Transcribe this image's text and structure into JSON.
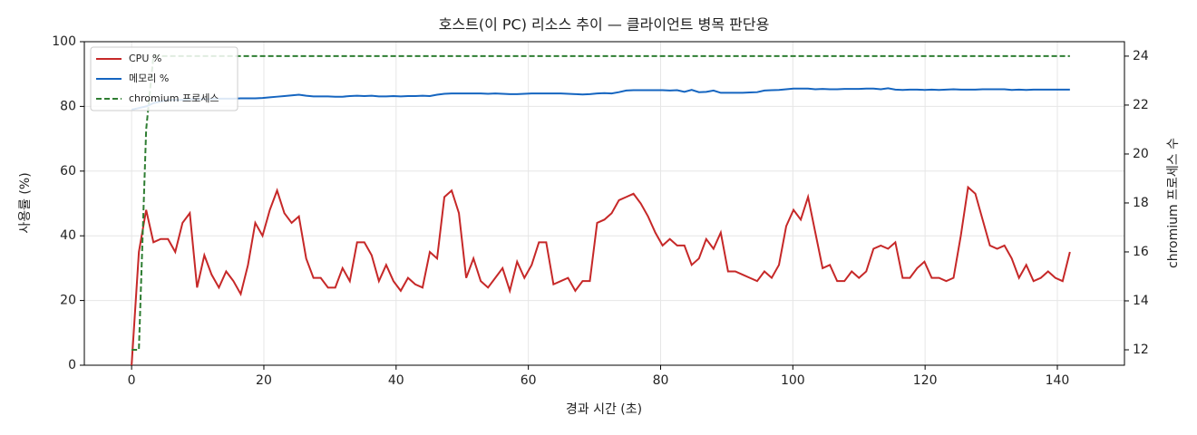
{
  "chart_data": {
    "type": "line",
    "title": "호스트(이 PC) 리소스 추이 — 클라이언트 병목 판단용",
    "x_label": "경과 시간 (초)",
    "y_label": "사용률 (%)",
    "y2_label": "chromium 프로세스 수",
    "x": [
      0,
      1.1,
      2.2,
      3.3,
      4.4,
      5.5,
      6.6,
      7.7,
      8.8,
      9.9,
      11,
      12.1,
      13.2,
      14.3,
      15.4,
      16.5,
      17.6,
      18.7,
      19.8,
      20.9,
      22,
      23.1,
      24.2,
      25.3,
      26.4,
      27.5,
      28.6,
      29.7,
      30.8,
      31.9,
      33,
      34.1,
      35.2,
      36.3,
      37.4,
      38.5,
      39.6,
      40.7,
      41.8,
      42.9,
      44,
      45.1,
      46.2,
      47.3,
      48.4,
      49.5,
      50.6,
      51.7,
      52.8,
      53.9,
      55,
      56.1,
      57.2,
      58.3,
      59.4,
      60.5,
      61.6,
      62.7,
      63.8,
      64.9,
      66,
      67.1,
      68.2,
      69.3,
      70.4,
      71.5,
      72.6,
      73.7,
      74.8,
      75.9,
      77,
      78.1,
      79.2,
      80.3,
      81.4,
      82.5,
      83.6,
      84.7,
      85.8,
      86.9,
      88,
      89.1,
      90.2,
      91.3,
      92.4,
      93.5,
      94.6,
      95.7,
      96.8,
      97.9,
      99,
      100.1,
      101.2,
      102.3,
      103.4,
      104.5,
      105.6,
      106.7,
      107.8,
      108.9,
      110,
      111.1,
      112.2,
      113.3,
      114.4,
      115.5,
      116.6,
      117.7,
      118.8,
      119.9,
      121,
      122.1,
      123.2,
      124.3,
      125.4,
      126.5,
      127.6,
      128.7,
      129.8,
      130.9,
      132,
      133.1,
      134.2,
      135.3,
      136.4,
      137.5,
      138.6,
      139.7,
      140.8,
      141.9
    ],
    "series": [
      {
        "name": "CPU %",
        "color": "#c62828",
        "linestyle": "solid",
        "values": [
          0,
          35,
          48,
          38,
          39,
          39,
          35,
          44,
          47,
          24,
          34,
          28,
          24,
          29,
          26,
          22,
          31,
          44,
          40,
          48,
          54,
          47,
          44,
          46,
          33,
          27,
          27,
          24,
          24,
          30,
          26,
          38,
          38,
          34,
          26,
          31,
          26,
          23,
          27,
          25,
          24,
          35,
          33,
          52,
          54,
          47,
          27,
          33,
          26,
          24,
          27,
          30,
          23,
          32,
          27,
          31,
          38,
          38,
          25,
          26,
          27,
          23,
          26,
          26,
          44,
          45,
          47,
          51,
          52,
          53,
          50,
          46,
          41,
          37,
          39,
          37,
          37,
          31,
          33,
          39,
          36,
          41,
          29,
          29,
          28,
          27,
          26,
          29,
          27,
          31,
          43,
          48,
          45,
          52,
          41,
          30,
          31,
          26,
          26,
          29,
          27,
          29,
          36,
          37,
          36,
          38,
          27,
          27,
          30,
          32,
          27,
          27,
          26,
          27,
          40,
          55,
          53,
          45,
          37,
          36,
          37,
          33,
          27,
          31,
          26,
          27,
          29,
          27,
          26,
          35
        ]
      },
      {
        "name": "메모리 %",
        "color": "#1565c0",
        "linestyle": "solid",
        "values": [
          79,
          79.5,
          80,
          81,
          81.5,
          82,
          82,
          82,
          82.2,
          82.3,
          82.3,
          82.3,
          82.4,
          82.4,
          82.4,
          82.5,
          82.5,
          82.5,
          82.6,
          82.8,
          83,
          83.2,
          83.4,
          83.6,
          83.3,
          83.1,
          83.1,
          83.1,
          83,
          83,
          83.2,
          83.3,
          83.2,
          83.3,
          83.1,
          83.1,
          83.2,
          83.1,
          83.2,
          83.2,
          83.3,
          83.2,
          83.6,
          83.9,
          84,
          84,
          84,
          84,
          84,
          83.9,
          84,
          83.9,
          83.8,
          83.8,
          83.9,
          84,
          84,
          84,
          84,
          84,
          83.9,
          83.8,
          83.7,
          83.8,
          84,
          84.1,
          84,
          84.4,
          84.9,
          85,
          85,
          85,
          85,
          85,
          84.9,
          85,
          84.5,
          85.1,
          84.4,
          84.5,
          84.9,
          84.2,
          84.2,
          84.2,
          84.2,
          84.3,
          84.4,
          84.9,
          85,
          85.1,
          85.3,
          85.5,
          85.5,
          85.5,
          85.3,
          85.4,
          85.3,
          85.3,
          85.4,
          85.4,
          85.4,
          85.5,
          85.5,
          85.3,
          85.6,
          85.2,
          85.1,
          85.2,
          85.2,
          85.1,
          85.2,
          85.1,
          85.2,
          85.3,
          85.2,
          85.2,
          85.2,
          85.3,
          85.3,
          85.3,
          85.3,
          85.1,
          85.2,
          85.1,
          85.2,
          85.2,
          85.2,
          85.2,
          85.2,
          85.2
        ]
      },
      {
        "name": "chromium 프로세스",
        "color": "#2e7d32",
        "linestyle": "dashed",
        "axis": "y2",
        "values": [
          12,
          12,
          21,
          24,
          24,
          24,
          24,
          24,
          24,
          24,
          24,
          24,
          24,
          24,
          24,
          24,
          24,
          24,
          24,
          24,
          24,
          24,
          24,
          24,
          24,
          24,
          24,
          24,
          24,
          24,
          24,
          24,
          24,
          24,
          24,
          24,
          24,
          24,
          24,
          24,
          24,
          24,
          24,
          24,
          24,
          24,
          24,
          24,
          24,
          24,
          24,
          24,
          24,
          24,
          24,
          24,
          24,
          24,
          24,
          24,
          24,
          24,
          24,
          24,
          24,
          24,
          24,
          24,
          24,
          24,
          24,
          24,
          24,
          24,
          24,
          24,
          24,
          24,
          24,
          24,
          24,
          24,
          24,
          24,
          24,
          24,
          24,
          24,
          24,
          24,
          24,
          24,
          24,
          24,
          24,
          24,
          24,
          24,
          24,
          24,
          24,
          24,
          24,
          24,
          24,
          24,
          24,
          24,
          24,
          24,
          24,
          24,
          24,
          24,
          24,
          24,
          24,
          24,
          24,
          24,
          24,
          24,
          24,
          24,
          24,
          24,
          24,
          24,
          24,
          24
        ]
      }
    ],
    "xlim": [
      -7.15,
      150.15
    ],
    "xticks": [
      0,
      20,
      40,
      60,
      80,
      100,
      120,
      140
    ],
    "ylim": [
      0,
      100
    ],
    "yticks": [
      0,
      20,
      40,
      60,
      80,
      100
    ],
    "y2lim": [
      11.37,
      24.59
    ],
    "y2ticks": [
      12,
      14,
      16,
      18,
      20,
      22,
      24
    ],
    "grid": true,
    "legend": "upper left"
  }
}
